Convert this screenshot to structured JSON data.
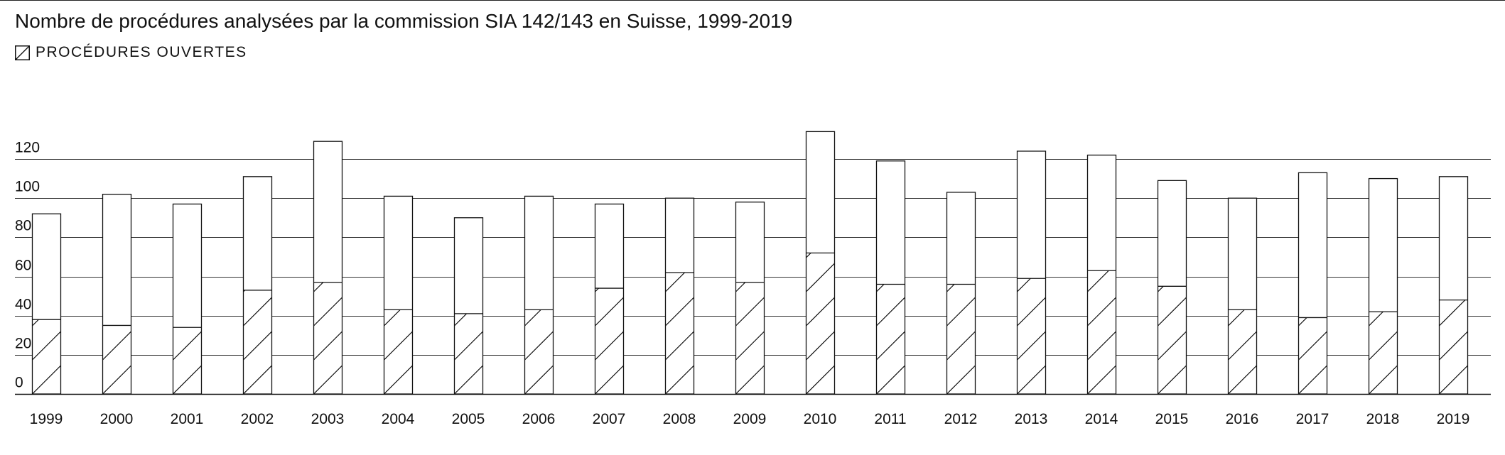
{
  "chart_data": {
    "type": "bar",
    "title": "Nombre de procédures analysées par la commission SIA 142/143 en Suisse, 1999-2019",
    "legend": {
      "label": "PROCÉDURES OUVERTES",
      "placement": "top-left",
      "pattern": "hatched"
    },
    "categories": [
      "1999",
      "2000",
      "2001",
      "2002",
      "2003",
      "2004",
      "2005",
      "2006",
      "2007",
      "2008",
      "2009",
      "2010",
      "2011",
      "2012",
      "2013",
      "2014",
      "2015",
      "2016",
      "2017",
      "2018",
      "2019"
    ],
    "series": [
      {
        "name": "",
        "values": [
          92,
          102,
          97,
          111,
          129,
          101,
          90,
          101,
          97,
          100,
          98,
          134,
          119,
          103,
          124,
          122,
          109,
          100,
          113,
          110,
          111
        ]
      },
      {
        "name": "PROCÉDURES OUVERTES",
        "values": [
          38,
          35,
          34,
          53,
          57,
          43,
          41,
          43,
          54,
          62,
          57,
          72,
          56,
          56,
          59,
          63,
          55,
          43,
          39,
          42,
          48
        ]
      }
    ],
    "stacking": "overlay",
    "yticks": [
      "0",
      "20",
      "40",
      "60",
      "80",
      "100",
      "120"
    ],
    "ylim": [
      0,
      140
    ],
    "xlabel": "",
    "ylabel": "",
    "grid": true
  },
  "colors": {
    "ink": "#111111",
    "grid": "#333333",
    "bar_fill": "#ffffff"
  }
}
